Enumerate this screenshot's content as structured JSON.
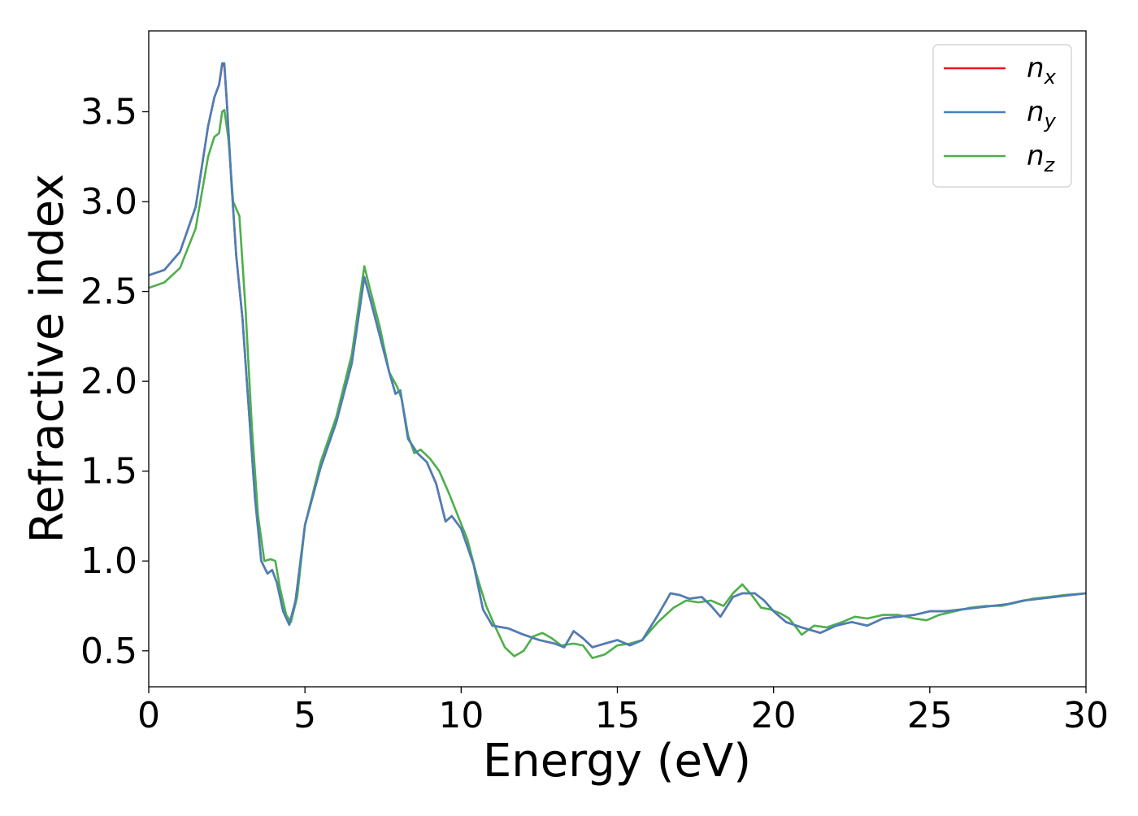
{
  "chart_data": {
    "type": "line",
    "title": "",
    "xlabel": "Energy (eV)",
    "ylabel": "Refractive index",
    "xlim": [
      0,
      30
    ],
    "ylim": [
      0.3,
      3.95
    ],
    "xticks": [
      "0",
      "5",
      "10",
      "15",
      "20",
      "25",
      "30"
    ],
    "yticks": [
      "0.5",
      "1.0",
      "1.5",
      "2.0",
      "2.5",
      "3.0",
      "3.5"
    ],
    "grid": false,
    "legend_position": "top-right",
    "series": [
      {
        "name": "n_x",
        "label_main": "n",
        "label_sub": "x",
        "color": "#e41a1c",
        "points": [
          [
            0,
            2.59
          ],
          [
            0.5,
            2.62
          ],
          [
            1.0,
            2.72
          ],
          [
            1.5,
            2.97
          ],
          [
            1.9,
            3.42
          ],
          [
            2.1,
            3.58
          ],
          [
            2.25,
            3.65
          ],
          [
            2.35,
            3.76
          ],
          [
            2.42,
            3.76
          ],
          [
            2.5,
            3.55
          ],
          [
            2.65,
            3.1
          ],
          [
            2.8,
            2.7
          ],
          [
            3.0,
            2.35
          ],
          [
            3.2,
            1.85
          ],
          [
            3.4,
            1.35
          ],
          [
            3.6,
            1.0
          ],
          [
            3.8,
            0.93
          ],
          [
            3.95,
            0.95
          ],
          [
            4.1,
            0.88
          ],
          [
            4.3,
            0.72
          ],
          [
            4.5,
            0.645
          ],
          [
            4.7,
            0.78
          ],
          [
            5.0,
            1.2
          ],
          [
            5.5,
            1.52
          ],
          [
            6.0,
            1.77
          ],
          [
            6.5,
            2.1
          ],
          [
            6.9,
            2.58
          ],
          [
            7.1,
            2.45
          ],
          [
            7.4,
            2.25
          ],
          [
            7.7,
            2.05
          ],
          [
            7.9,
            1.93
          ],
          [
            8.05,
            1.95
          ],
          [
            8.3,
            1.68
          ],
          [
            8.6,
            1.6
          ],
          [
            8.9,
            1.55
          ],
          [
            9.2,
            1.43
          ],
          [
            9.5,
            1.22
          ],
          [
            9.7,
            1.25
          ],
          [
            10.0,
            1.18
          ],
          [
            10.4,
            0.98
          ],
          [
            10.7,
            0.73
          ],
          [
            11.0,
            0.64
          ],
          [
            11.5,
            0.625
          ],
          [
            12.0,
            0.59
          ],
          [
            12.5,
            0.56
          ],
          [
            13.0,
            0.54
          ],
          [
            13.3,
            0.52
          ],
          [
            13.6,
            0.61
          ],
          [
            13.9,
            0.57
          ],
          [
            14.2,
            0.52
          ],
          [
            14.6,
            0.54
          ],
          [
            15.0,
            0.56
          ],
          [
            15.4,
            0.53
          ],
          [
            15.8,
            0.56
          ],
          [
            16.3,
            0.7
          ],
          [
            16.7,
            0.82
          ],
          [
            17.0,
            0.81
          ],
          [
            17.3,
            0.79
          ],
          [
            17.7,
            0.8
          ],
          [
            18.0,
            0.75
          ],
          [
            18.3,
            0.69
          ],
          [
            18.7,
            0.8
          ],
          [
            19.0,
            0.82
          ],
          [
            19.4,
            0.82
          ],
          [
            19.7,
            0.78
          ],
          [
            20.0,
            0.72
          ],
          [
            20.4,
            0.66
          ],
          [
            20.9,
            0.63
          ],
          [
            21.5,
            0.6
          ],
          [
            22.0,
            0.64
          ],
          [
            22.5,
            0.66
          ],
          [
            23.0,
            0.64
          ],
          [
            23.5,
            0.68
          ],
          [
            24.0,
            0.69
          ],
          [
            24.5,
            0.7
          ],
          [
            25.0,
            0.72
          ],
          [
            25.5,
            0.72
          ],
          [
            26.0,
            0.73
          ],
          [
            26.5,
            0.74
          ],
          [
            27.0,
            0.75
          ],
          [
            27.5,
            0.76
          ],
          [
            28.0,
            0.78
          ],
          [
            28.5,
            0.79
          ],
          [
            29.0,
            0.8
          ],
          [
            29.5,
            0.81
          ],
          [
            30.0,
            0.82
          ]
        ]
      },
      {
        "name": "n_y",
        "label_main": "n",
        "label_sub": "y",
        "color": "#4a7fb8",
        "points": [
          [
            0,
            2.59
          ],
          [
            0.5,
            2.62
          ],
          [
            1.0,
            2.72
          ],
          [
            1.5,
            2.97
          ],
          [
            1.9,
            3.42
          ],
          [
            2.1,
            3.58
          ],
          [
            2.25,
            3.65
          ],
          [
            2.35,
            3.77
          ],
          [
            2.42,
            3.77
          ],
          [
            2.5,
            3.55
          ],
          [
            2.65,
            3.1
          ],
          [
            2.8,
            2.7
          ],
          [
            3.0,
            2.35
          ],
          [
            3.2,
            1.85
          ],
          [
            3.4,
            1.35
          ],
          [
            3.6,
            1.0
          ],
          [
            3.8,
            0.93
          ],
          [
            3.95,
            0.95
          ],
          [
            4.1,
            0.88
          ],
          [
            4.3,
            0.72
          ],
          [
            4.5,
            0.645
          ],
          [
            4.7,
            0.78
          ],
          [
            5.0,
            1.2
          ],
          [
            5.5,
            1.52
          ],
          [
            6.0,
            1.77
          ],
          [
            6.5,
            2.1
          ],
          [
            6.9,
            2.58
          ],
          [
            7.1,
            2.45
          ],
          [
            7.4,
            2.25
          ],
          [
            7.7,
            2.05
          ],
          [
            7.9,
            1.93
          ],
          [
            8.05,
            1.95
          ],
          [
            8.3,
            1.68
          ],
          [
            8.6,
            1.6
          ],
          [
            8.9,
            1.55
          ],
          [
            9.2,
            1.43
          ],
          [
            9.5,
            1.22
          ],
          [
            9.7,
            1.25
          ],
          [
            10.0,
            1.18
          ],
          [
            10.4,
            0.98
          ],
          [
            10.7,
            0.73
          ],
          [
            11.0,
            0.64
          ],
          [
            11.5,
            0.625
          ],
          [
            12.0,
            0.59
          ],
          [
            12.5,
            0.56
          ],
          [
            13.0,
            0.54
          ],
          [
            13.3,
            0.52
          ],
          [
            13.6,
            0.61
          ],
          [
            13.9,
            0.57
          ],
          [
            14.2,
            0.52
          ],
          [
            14.6,
            0.54
          ],
          [
            15.0,
            0.56
          ],
          [
            15.4,
            0.53
          ],
          [
            15.8,
            0.56
          ],
          [
            16.3,
            0.7
          ],
          [
            16.7,
            0.82
          ],
          [
            17.0,
            0.81
          ],
          [
            17.3,
            0.79
          ],
          [
            17.7,
            0.8
          ],
          [
            18.0,
            0.75
          ],
          [
            18.3,
            0.69
          ],
          [
            18.7,
            0.8
          ],
          [
            19.0,
            0.82
          ],
          [
            19.4,
            0.82
          ],
          [
            19.7,
            0.78
          ],
          [
            20.0,
            0.72
          ],
          [
            20.4,
            0.66
          ],
          [
            20.9,
            0.63
          ],
          [
            21.5,
            0.6
          ],
          [
            22.0,
            0.64
          ],
          [
            22.5,
            0.66
          ],
          [
            23.0,
            0.64
          ],
          [
            23.5,
            0.68
          ],
          [
            24.0,
            0.69
          ],
          [
            24.5,
            0.7
          ],
          [
            25.0,
            0.72
          ],
          [
            25.5,
            0.72
          ],
          [
            26.0,
            0.73
          ],
          [
            26.5,
            0.74
          ],
          [
            27.0,
            0.75
          ],
          [
            27.5,
            0.76
          ],
          [
            28.0,
            0.78
          ],
          [
            28.5,
            0.79
          ],
          [
            29.0,
            0.8
          ],
          [
            29.5,
            0.81
          ],
          [
            30.0,
            0.82
          ]
        ]
      },
      {
        "name": "n_z",
        "label_main": "n",
        "label_sub": "z",
        "color": "#4daf4a",
        "points": [
          [
            0,
            2.52
          ],
          [
            0.5,
            2.55
          ],
          [
            1.0,
            2.63
          ],
          [
            1.5,
            2.85
          ],
          [
            1.9,
            3.25
          ],
          [
            2.1,
            3.36
          ],
          [
            2.25,
            3.38
          ],
          [
            2.35,
            3.5
          ],
          [
            2.42,
            3.51
          ],
          [
            2.55,
            3.35
          ],
          [
            2.7,
            3.0
          ],
          [
            2.9,
            2.92
          ],
          [
            3.1,
            2.4
          ],
          [
            3.3,
            1.75
          ],
          [
            3.5,
            1.25
          ],
          [
            3.7,
            1.0
          ],
          [
            3.9,
            1.01
          ],
          [
            4.05,
            1.0
          ],
          [
            4.2,
            0.85
          ],
          [
            4.4,
            0.7
          ],
          [
            4.55,
            0.66
          ],
          [
            4.75,
            0.8
          ],
          [
            5.0,
            1.2
          ],
          [
            5.5,
            1.55
          ],
          [
            6.0,
            1.8
          ],
          [
            6.5,
            2.15
          ],
          [
            6.9,
            2.64
          ],
          [
            7.1,
            2.5
          ],
          [
            7.4,
            2.3
          ],
          [
            7.7,
            2.05
          ],
          [
            7.95,
            1.97
          ],
          [
            8.1,
            1.9
          ],
          [
            8.3,
            1.7
          ],
          [
            8.5,
            1.6
          ],
          [
            8.7,
            1.62
          ],
          [
            9.0,
            1.57
          ],
          [
            9.3,
            1.5
          ],
          [
            9.6,
            1.38
          ],
          [
            9.9,
            1.25
          ],
          [
            10.2,
            1.12
          ],
          [
            10.5,
            0.92
          ],
          [
            10.8,
            0.75
          ],
          [
            11.1,
            0.63
          ],
          [
            11.4,
            0.52
          ],
          [
            11.7,
            0.47
          ],
          [
            12.0,
            0.5
          ],
          [
            12.3,
            0.58
          ],
          [
            12.6,
            0.6
          ],
          [
            12.9,
            0.57
          ],
          [
            13.2,
            0.53
          ],
          [
            13.6,
            0.54
          ],
          [
            13.9,
            0.53
          ],
          [
            14.2,
            0.46
          ],
          [
            14.6,
            0.48
          ],
          [
            15.0,
            0.53
          ],
          [
            15.4,
            0.54
          ],
          [
            15.8,
            0.56
          ],
          [
            16.3,
            0.66
          ],
          [
            16.8,
            0.74
          ],
          [
            17.2,
            0.78
          ],
          [
            17.6,
            0.77
          ],
          [
            18.0,
            0.78
          ],
          [
            18.4,
            0.75
          ],
          [
            18.7,
            0.82
          ],
          [
            19.0,
            0.87
          ],
          [
            19.3,
            0.81
          ],
          [
            19.6,
            0.74
          ],
          [
            19.9,
            0.73
          ],
          [
            20.2,
            0.71
          ],
          [
            20.5,
            0.68
          ],
          [
            20.9,
            0.59
          ],
          [
            21.3,
            0.64
          ],
          [
            21.7,
            0.63
          ],
          [
            22.2,
            0.66
          ],
          [
            22.6,
            0.69
          ],
          [
            23.0,
            0.68
          ],
          [
            23.5,
            0.7
          ],
          [
            24.0,
            0.7
          ],
          [
            24.5,
            0.68
          ],
          [
            24.9,
            0.67
          ],
          [
            25.3,
            0.7
          ],
          [
            25.8,
            0.72
          ],
          [
            26.3,
            0.74
          ],
          [
            26.8,
            0.75
          ],
          [
            27.3,
            0.75
          ],
          [
            27.8,
            0.77
          ],
          [
            28.3,
            0.79
          ],
          [
            28.8,
            0.8
          ],
          [
            29.3,
            0.81
          ],
          [
            30.0,
            0.82
          ]
        ]
      }
    ]
  }
}
